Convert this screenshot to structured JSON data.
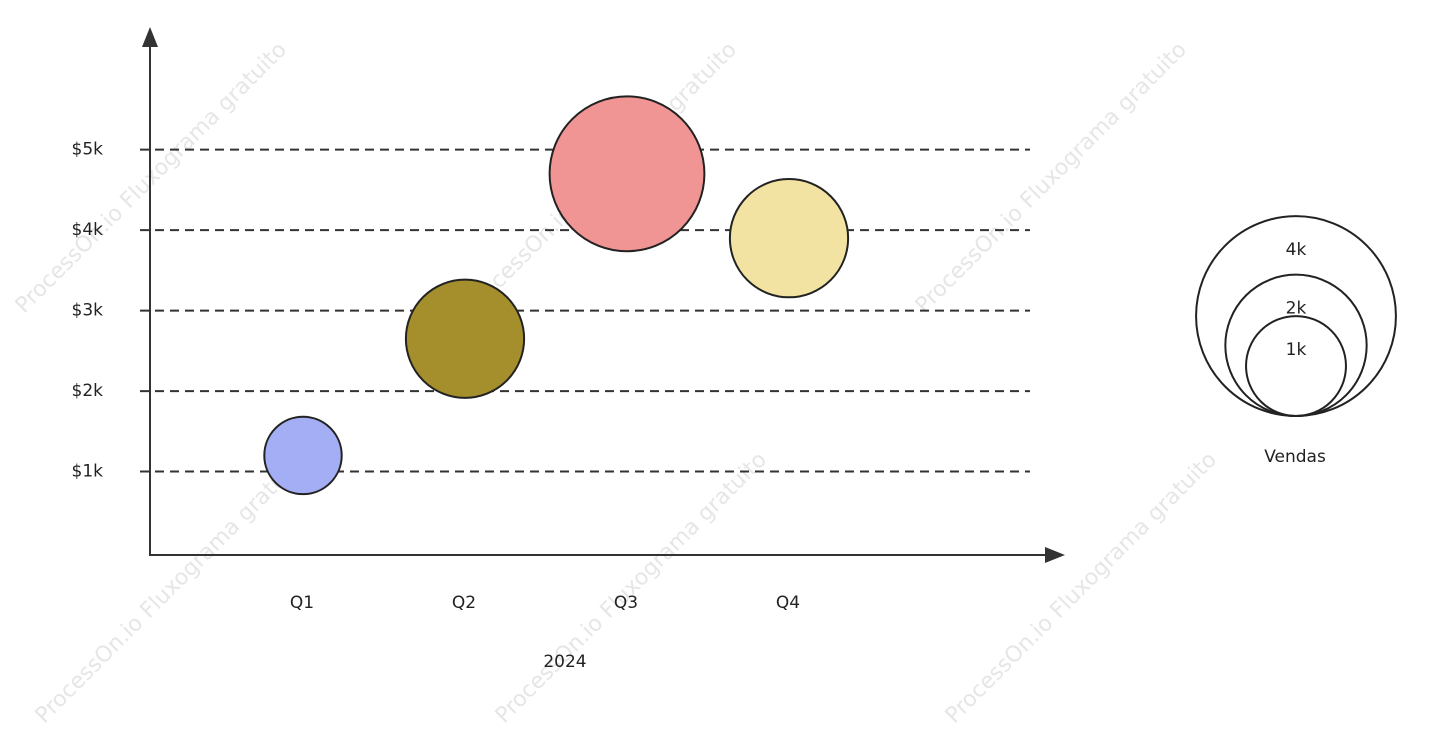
{
  "chart_data": {
    "type": "bubble",
    "watermark": "ProcessOn.io Fluxograma gratuito",
    "x_label": "2024",
    "categories": [
      "Q1",
      "Q2",
      "Q3",
      "Q4"
    ],
    "series": [
      {
        "values": [
          1200,
          2650,
          4700,
          3900
        ],
        "sizes": [
          600,
          1400,
          2400,
          1400
        ],
        "colors": [
          "#a4aef4",
          "#a58f2c",
          "#f09593",
          "#f2e3a3"
        ]
      }
    ],
    "ylim": [
      0,
      6400
    ],
    "yticks": [
      {
        "value": 1000,
        "label": "$1k"
      },
      {
        "value": 2000,
        "label": "$2k"
      },
      {
        "value": 3000,
        "label": "$3k"
      },
      {
        "value": 4000,
        "label": "$4k"
      },
      {
        "value": 5000,
        "label": "$5k"
      }
    ],
    "grid": true,
    "size_legend": {
      "title": "Vendas",
      "sizes": [
        4000,
        2000,
        1000
      ],
      "labels": [
        "4k",
        "2k",
        "1k"
      ]
    }
  }
}
